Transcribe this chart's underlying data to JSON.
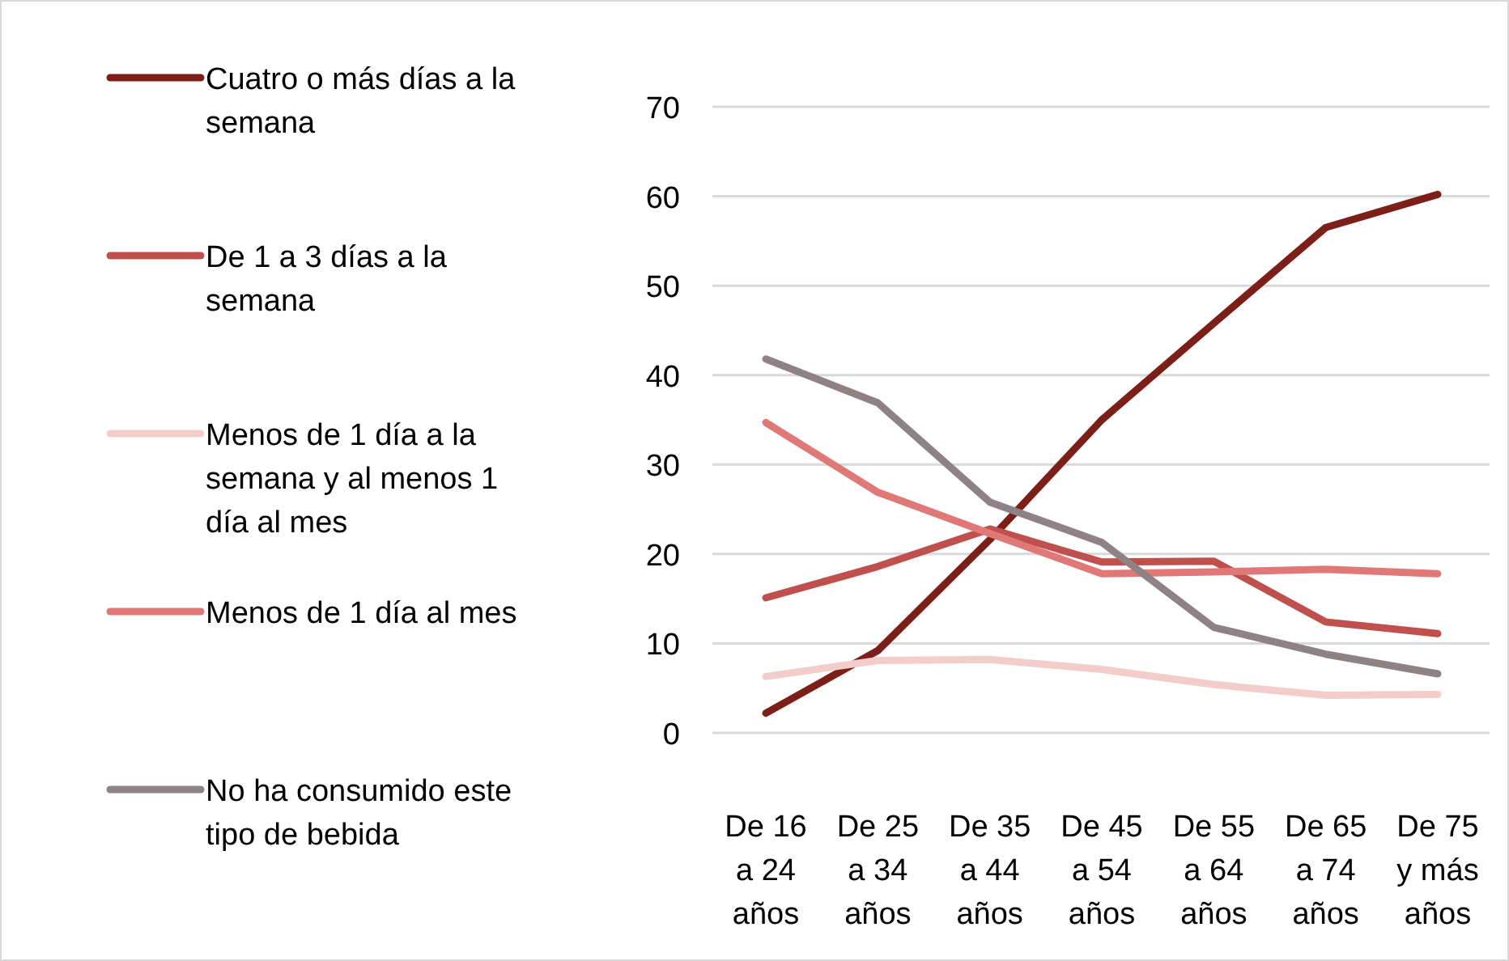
{
  "chart_data": {
    "type": "line",
    "categories": [
      "De 16 a 24 años",
      "De 25 a 34 años",
      "De 35 a 44 años",
      "De 45 a 54 años",
      "De 55 a 64 años",
      "De 65 a 74 años",
      "De 75 y más años"
    ],
    "series": [
      {
        "name": "Cuatro o más días a la semana",
        "color": "#7b1f18",
        "values": [
          2.2,
          9.2,
          21.6,
          35,
          45.8,
          56.5,
          60.2
        ]
      },
      {
        "name": "De 1 a 3 días a la semana",
        "color": "#c0504d",
        "values": [
          15.1,
          18.6,
          22.8,
          19.1,
          19.2,
          12.4,
          11.1
        ]
      },
      {
        "name": "Menos de 1 día a la semana y al menos 1 día al mes",
        "color": "#f2cdc9",
        "values": [
          6.3,
          8.1,
          8.2,
          7.1,
          5.4,
          4.2,
          4.3
        ]
      },
      {
        "name": "Menos de 1 día al mes",
        "color": "#e07878",
        "values": [
          34.7,
          26.9,
          22.3,
          17.8,
          18,
          18.3,
          17.8
        ]
      },
      {
        "name": "No ha consumido este tipo de bebida",
        "color": "#8f8284",
        "values": [
          41.8,
          36.9,
          25.8,
          21.3,
          11.8,
          8.8,
          6.6
        ]
      }
    ],
    "ylim": [
      0,
      70
    ],
    "yticks": [
      0,
      10,
      20,
      30,
      40,
      50,
      60,
      70
    ],
    "grid": "y",
    "legend": "left",
    "marker": "none",
    "line_style": "solid"
  }
}
